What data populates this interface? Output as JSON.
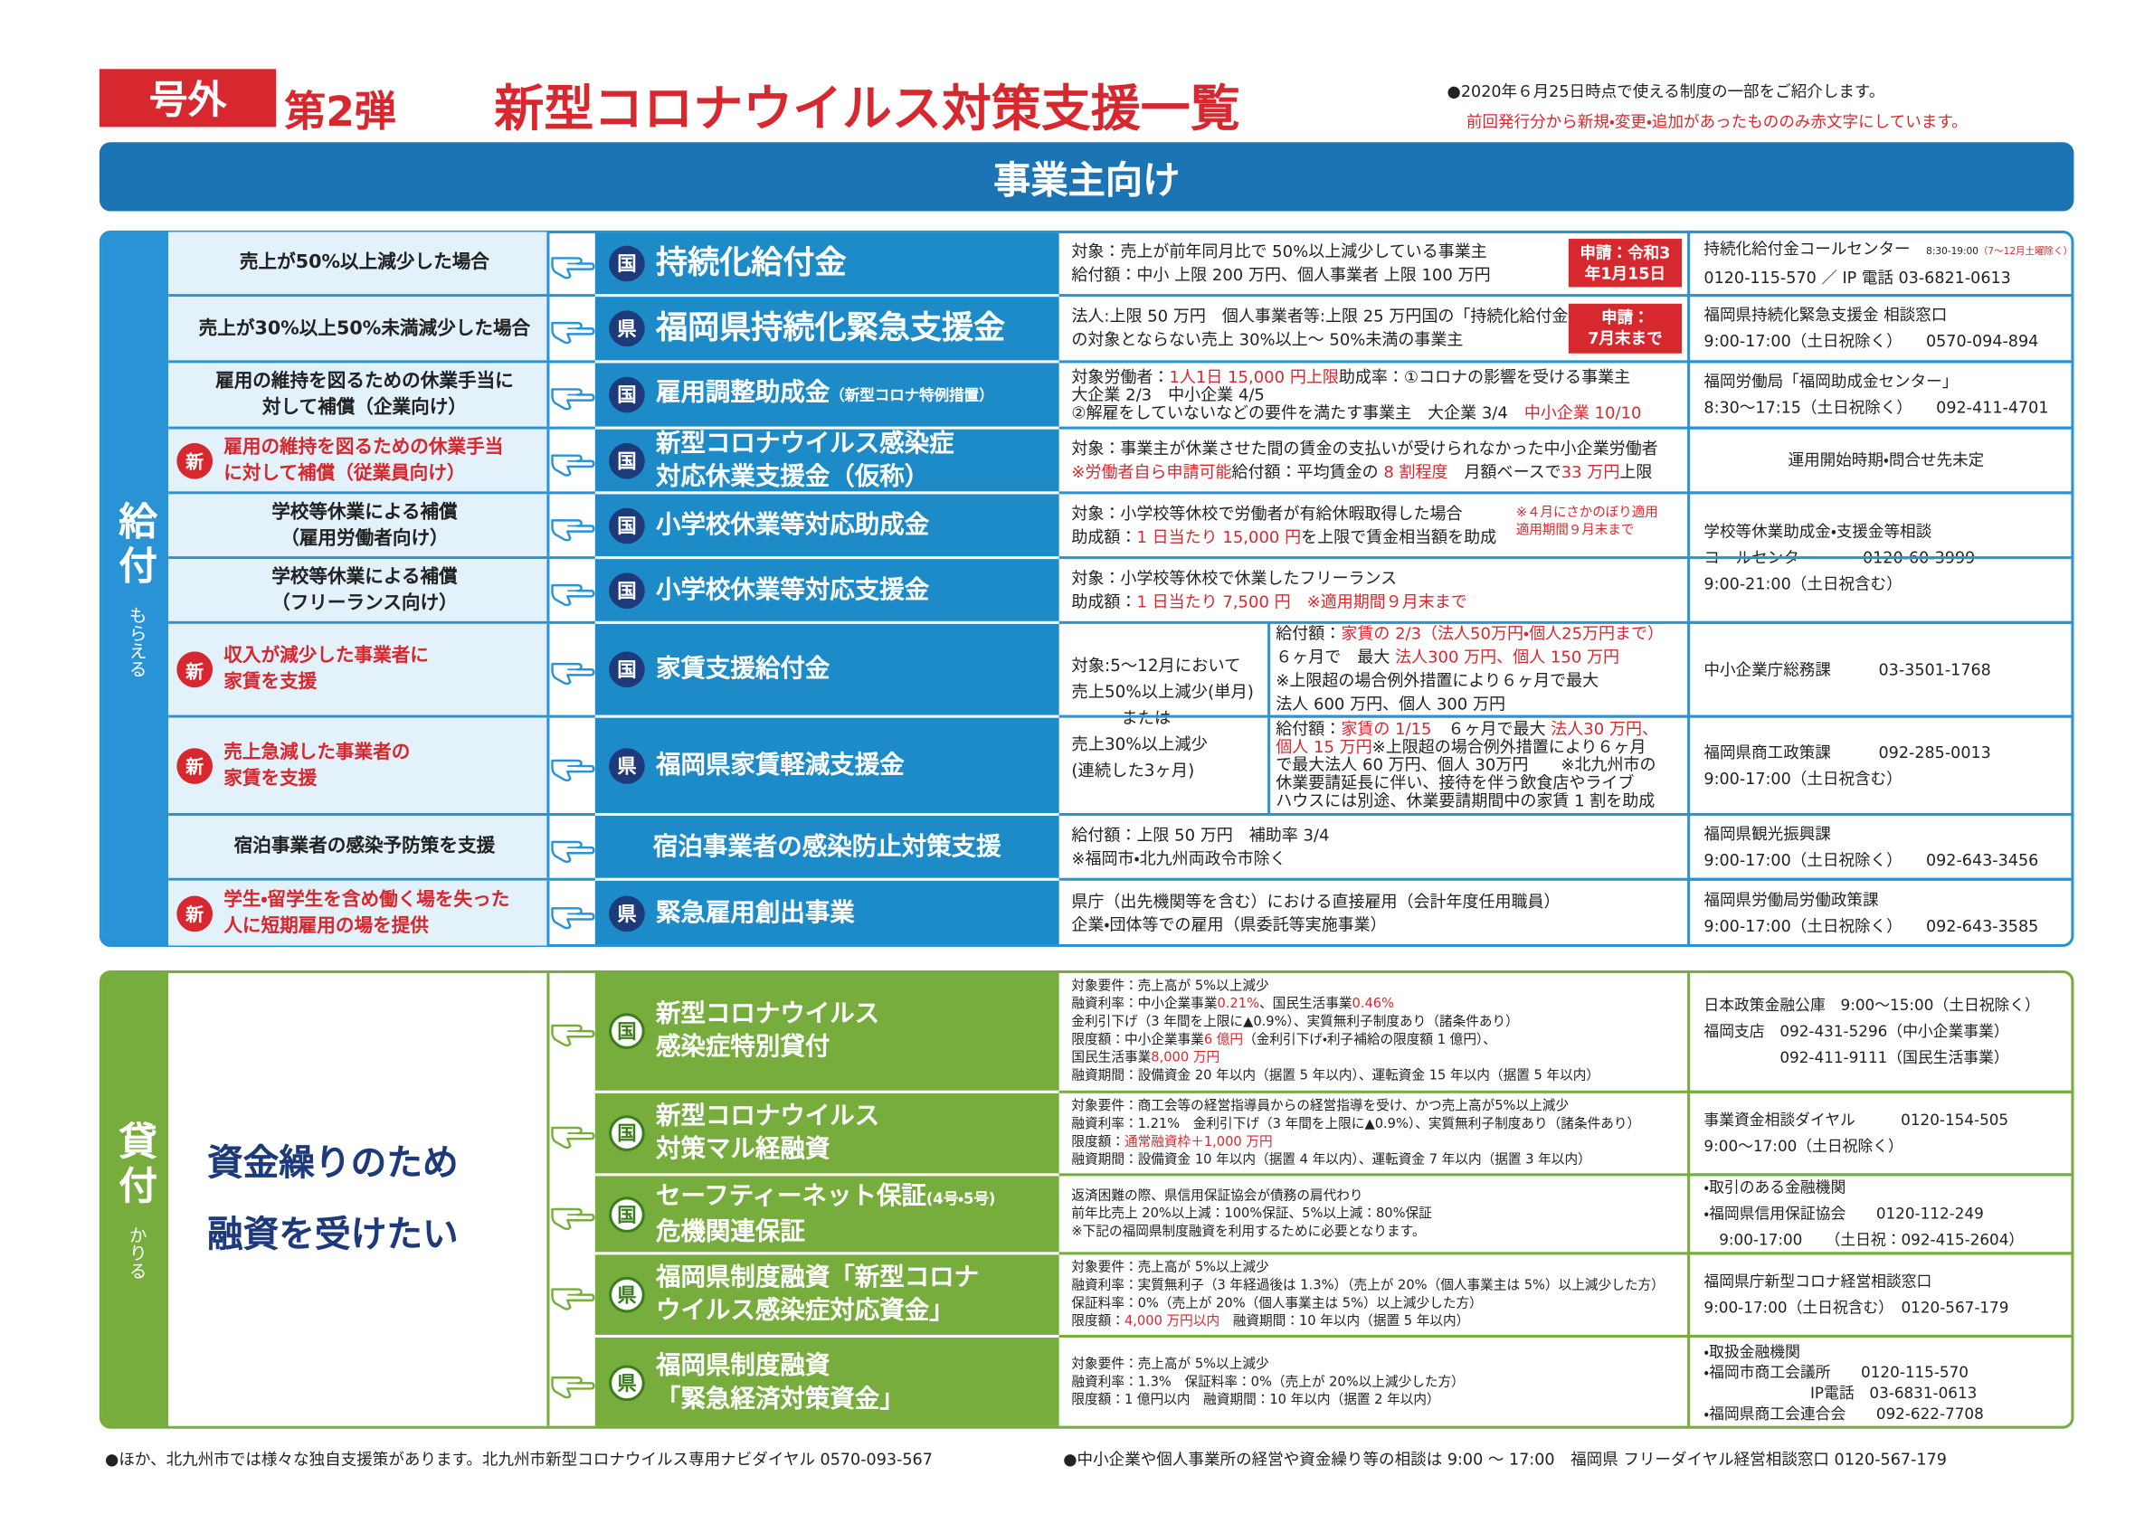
{
  "header": {
    "badge": "号外",
    "edition": "第2弾",
    "title": "新型コロナウイルス対策支援一覧",
    "notes": [
      "●2020年６月25日時点で使える制度の一部をご紹介します。",
      "前回発行分から新規・変更・追加があったもののみ赤文字にしています。"
    ]
  },
  "banner": "事業主向け",
  "sections": [
    {
      "label": "給付",
      "sublabel": "もらえる",
      "color": "#2a93d5",
      "rows": [
        {
          "case": {
            "lines": [
              "売上が50%以上減少した場合"
            ]
          },
          "program": {
            "level": "国",
            "name": [
              "持続化給付金"
            ]
          },
          "details": [
            "対象：売上が前年同月比で 50%以上減少している事業主",
            "給付額：中小 上限 200 万円、個人事業者 上限 100 万円"
          ],
          "deadline": [
            "申請：令和3",
            "年1月15日"
          ],
          "contact": [
            [
              "持続化給付金コールセンター　",
              {
                "text": "8:30-19:00",
                "small": true
              },
              {
                "text": "（7〜12月土曜除く）",
                "small": true,
                "color": "#d7282f"
              }
            ],
            "0120-115-570 ／ IP 電話 03-6821-0613"
          ]
        },
        {
          "case": {
            "lines": [
              "売上が30%以上50%未満減少した場合"
            ]
          },
          "program": {
            "level": "県",
            "name": [
              "福岡県持続化緊急支援金"
            ]
          },
          "details": [
            "法人:上限 50 万円　個人事業者等:上限 25 万円国の「持続化給付金」",
            "の対象とならない売上 30%以上～ 50%未満の事業主"
          ],
          "deadline": [
            "申請：",
            "7月末まで"
          ],
          "contact": [
            "福岡県持続化緊急支援金 相談窓口",
            "9:00-17:00（土日祝除く）　　0570-094-894"
          ]
        },
        {
          "case": {
            "lines": [
              "雇用の維持を図るための休業手当に",
              "対して補償（企業向け）"
            ]
          },
          "program": {
            "level": "国",
            "name": [
              [
                "雇用調整助成金",
                {
                  "text": "（新型コロナ特例措置）",
                  "small": true
                }
              ]
            ]
          },
          "details": [
            [
              "対象労働者：",
              {
                "text": "1人1日 15,000 円上限",
                "color": "#d7282f"
              },
              "助成率：①コロナの影響を受ける事業主"
            ],
            "大企業 2/3　中小企業 4/5",
            [
              "②解雇をしていないなどの要件を満たす事業主　大企業 3/4　",
              {
                "text": "中小企業 10/10",
                "color": "#d7282f"
              }
            ]
          ],
          "contact": [
            "福岡労働局「福岡助成金センター」",
            "8:30〜17:15（土日祝除く）　　092-411-4701"
          ]
        },
        {
          "case": {
            "badge": "新",
            "color": "#d7282f",
            "lines": [
              "雇用の維持を図るための休業手当",
              "に対して補償（従業員向け）"
            ]
          },
          "program": {
            "level": "国",
            "name": [
              "新型コロナウイルス感染症",
              "対応休業支援金（仮称）"
            ]
          },
          "details": [
            "対象：事業主が休業させた間の賃金の支払いが受けられなかった中小企業労働者",
            [
              {
                "text": "※労働者自ら申請可能",
                "color": "#d7282f"
              },
              "給付額：平均賃金の ",
              {
                "text": "8 割程度",
                "color": "#d7282f"
              },
              "　月額ベースで",
              {
                "text": "33 万円",
                "color": "#d7282f"
              },
              "上限"
            ]
          ],
          "contact": [
            "運用開始時期・問合せ先未定"
          ]
        },
        {
          "case": {
            "lines": [
              "学校等休業による補償",
              "（雇用労働者向け）"
            ]
          },
          "program": {
            "level": "国",
            "name": [
              "小学校休業等対応助成金"
            ]
          },
          "details": [
            "対象：小学校等休校で労働者が有給休暇取得した場合",
            [
              "助成額：",
              {
                "text": "1 日当たり 15,000 円",
                "color": "#d7282f"
              },
              "を上限で賃金相当額を助成"
            ]
          ],
          "note": [
            "※４月にさかのぼり適用",
            "適用期間９月末まで"
          ],
          "contact": [
            "学校等休業助成金・支援金等相談",
            "コールセンター　　　0120-60-3999",
            "9:00-21:00（土日祝含む）"
          ]
        },
        {
          "case": {
            "lines": [
              "学校等休業による補償",
              "（フリーランス向け）"
            ]
          },
          "program": {
            "level": "国",
            "name": [
              "小学校休業等対応支援金"
            ]
          },
          "details": [
            "対象：小学校等休校で休業したフリーランス",
            [
              "助成額：",
              {
                "text": "1 日当たり 7,500 円　※適用期間９月末まで",
                "color": "#d7282f"
              }
            ]
          ]
        },
        {
          "case": {
            "badge": "新",
            "color": "#d7282f",
            "lines": [
              "収入が減少した事業者に",
              "家賃を支援"
            ]
          },
          "program": {
            "level": "国",
            "name": [
              "家賃支援給付金"
            ]
          },
          "target": [
            "対象:5～12月において",
            "売上50%以上減少(単月)",
            "　　　または",
            "売上30%以上減少",
            "(連続した3ヶ月)"
          ],
          "details": [
            [
              "給付額：",
              {
                "text": "家賃の 2/3（法人50万円・個人25万円まで）",
                "color": "#d7282f"
              }
            ],
            [
              "６ヶ月で　最大 ",
              {
                "text": "法人300 万円、個人 150 万円",
                "color": "#d7282f"
              }
            ],
            "※上限超の場合例外措置により６ヶ月で最大",
            "法人 600 万円、個人 300 万円"
          ],
          "contact": [
            "中小企業庁総務課　　　03-3501-1768"
          ]
        },
        {
          "case": {
            "badge": "新",
            "color": "#d7282f",
            "lines": [
              "売上急減した事業者の",
              "家賃を支援"
            ]
          },
          "program": {
            "level": "県",
            "name": [
              "福岡県家賃軽減支援金"
            ]
          },
          "details": [
            [
              "給付額：",
              {
                "text": "家賃の 1/15",
                "color": "#d7282f"
              },
              "　６ヶ月で最大 ",
              {
                "text": "法人30 万円、",
                "color": "#d7282f"
              }
            ],
            [
              {
                "text": "個人 15 万円",
                "color": "#d7282f"
              },
              "※上限超の場合例外措置により６ヶ月"
            ],
            "で最大法人 60 万円、個人 30万円　　※北九州市の",
            "休業要請延長に伴い、接待を伴う飲食店やライブ",
            "ハウスには別途、休業要請期間中の家賃 1 割を助成"
          ],
          "contact": [
            "福岡県商工政策課　　　092-285-0013",
            "9:00-17:00（土日祝含む）"
          ]
        },
        {
          "case": {
            "lines": [
              "宿泊事業者の感染予防策を支援"
            ]
          },
          "program": {
            "name": [
              "宿泊事業者の感染防止対策支援"
            ]
          },
          "details": [
            "給付額：上限 50 万円　補助率 3/4",
            "※福岡市・北九州両政令市除く"
          ],
          "contact": [
            "福岡県観光振興課",
            "9:00-17:00（土日祝除く）　　092-643-3456"
          ]
        },
        {
          "case": {
            "badge": "新",
            "color": "#d7282f",
            "lines": [
              "学生・留学生を含め働く場を失った",
              "人に短期雇用の場を提供"
            ]
          },
          "program": {
            "level": "県",
            "name": [
              "緊急雇用創出事業"
            ]
          },
          "details": [
            "県庁（出先機関等を含む）における直接雇用（会計年度任用職員）",
            "企業・団体等での雇用（県委託等実施事業）"
          ],
          "contact": [
            "福岡県労働局労働政策課",
            "9:00-17:00（土日祝除く）　　092-643-3585"
          ]
        }
      ]
    },
    {
      "label": "貸付",
      "sublabel": "かりる",
      "color": "#76ad3c",
      "need": [
        "資金繰りのため",
        "融資を受けたい"
      ],
      "rows": [
        {
          "program": {
            "level": "国",
            "name": [
              "新型コロナウイルス",
              "感染症特別貸付"
            ]
          },
          "details": [
            "対象要件：売上高が 5%以上減少",
            [
              "融資利率：中小企業事業",
              {
                "text": "0.21%",
                "color": "#d7282f"
              },
              "、国民生活事業",
              {
                "text": "0.46%",
                "color": "#d7282f"
              }
            ],
            "金利引下げ（3 年間を上限に▲0.9%）、実質無利子制度あり（諸条件あり）",
            [
              "限度額：中小企業事業",
              {
                "text": "6 億円",
                "color": "#d7282f"
              },
              "（金利引下げ・利子補給の限度額 1 億円）、"
            ],
            [
              "国民生活事業",
              {
                "text": "8,000 万円",
                "color": "#d7282f"
              }
            ],
            "融資期間：設備資金 20 年以内（据置 5 年以内）、運転資金 15 年以内（据置 5 年以内）"
          ],
          "contact": [
            "日本政策金融公庫　9:00〜15:00（土日祝除く）",
            "福岡支店　092-431-5296（中小企業事業）",
            "　　　　　092-411-9111（国民生活事業）"
          ]
        },
        {
          "program": {
            "level": "国",
            "name": [
              "新型コロナウイルス",
              "対策マル経融資"
            ]
          },
          "details": [
            "対象要件：商工会等の経営指導員からの経営指導を受け、かつ売上高が5%以上減少",
            "融資利率：1.21%　金利引下げ（3 年間を上限に▲0.9%）、実質無利子制度あり（諸条件あり）",
            [
              "限度額：",
              {
                "text": "通常融資枠＋1,000 万円",
                "color": "#d7282f"
              }
            ],
            "融資期間：設備資金 10 年以内（据置 4 年以内）、運転資金 7 年以内（据置 3 年以内）"
          ],
          "contact": [
            "事業資金相談ダイヤル　　　0120-154-505",
            "9:00〜17:00（土日祝除く）"
          ]
        },
        {
          "program": {
            "level": "国",
            "name": [
              [
                "セーフティーネット保証",
                {
                  "text": "(4号・5号)",
                  "small": true
                }
              ],
              "危機関連保証"
            ]
          },
          "details": [
            "返済困難の際、県信用保証協会が債務の肩代わり",
            "前年比売上 20%以上減：100%保証、5%以上減：80%保証",
            "※下記の福岡県制度融資を利用するために必要となります。"
          ],
          "contact": [
            "・取引のある金融機関",
            "・福岡県信用保証協会　　0120-112-249",
            "　9:00-17:00　　（土日祝：092-415-2604）"
          ]
        },
        {
          "program": {
            "level": "県",
            "name": [
              "福岡県制度融資「新型コロナ",
              "ウイルス感染症対応資金」"
            ]
          },
          "details": [
            "対象要件：売上高が 5%以上減少",
            "融資利率：実質無利子（3 年経過後は 1.3%）（売上が 20%（個人事業主は 5%）以上減少した方）",
            "保証料率：0%（売上が 20%（個人事業主は 5%）以上減少した方）",
            [
              "限度額：",
              {
                "text": "4,000 万円以内",
                "color": "#d7282f"
              },
              "　融資期間：10 年以内（据置 5 年以内）"
            ]
          ],
          "contact": [
            "福岡県庁新型コロナ経営相談窓口",
            "9:00-17:00（土日祝含む）　0120-567-179"
          ]
        },
        {
          "program": {
            "level": "県",
            "name": [
              "福岡県制度融資",
              "「緊急経済対策資金」"
            ]
          },
          "details": [
            "対象要件：売上高が 5%以上減少",
            "融資利率：1.3%　保証料率：0%（売上が 20%以上減少した方）",
            "限度額：1 億円以内　融資期間：10 年以内（据置 2 年以内）"
          ],
          "contact": [
            "・取扱金融機関",
            "・福岡市商工会議所　　0120-115-570",
            "　　　　　　　IP電話　03-6831-0613",
            "・福岡県商工会連合会　　092-622-7708"
          ]
        }
      ]
    }
  ],
  "footer": [
    "●ほか、北九州市では様々な独自支援策があります。北九州市新型コロナウイルス専用ナビダイヤル 0570-093-567",
    "●中小企業や個人事業所の経営や資金繰り等の相談は 9:00 ～ 17:00　福岡県 フリーダイヤル経営相談窓口 0120-567-179"
  ]
}
